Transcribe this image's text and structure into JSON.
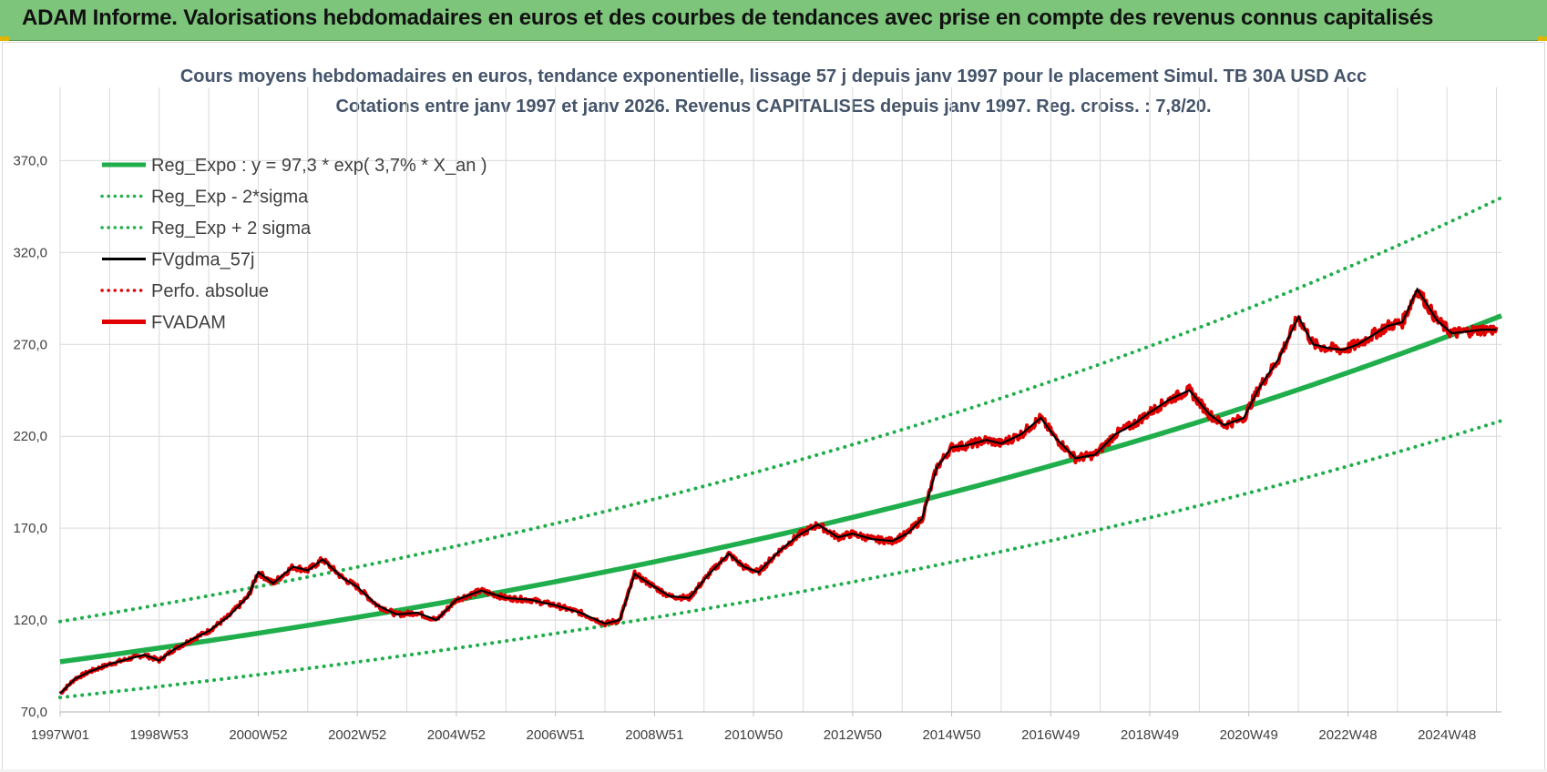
{
  "header": {
    "title": "ADAM Informe. Valorisations hebdomadaires en euros et des courbes de tendances avec prise en compte des revenus connus capitalisés"
  },
  "colors": {
    "header_bg": "#7dc57a",
    "reg_expo": "#1fae4b",
    "sigma": "#1fae4b",
    "gdma": "#000000",
    "perfo": "#e00000",
    "fvadam": "#e00000",
    "grid": "#d9d9d9"
  },
  "chart_data": {
    "type": "line",
    "title_line1": "Cours moyens hebdomadaires en euros, tendance exponentielle, lissage 57 j depuis janv 1997 pour le placement Simul. TB 30A USD Acc",
    "title_line2": "Cotations entre janv 1997 et janv 2026. Revenus CAPITALISES depuis janv 1997. Reg. croiss. : 7,8/20.",
    "ylim": [
      70,
      390
    ],
    "yticks": [
      "70,0",
      "120,0",
      "170,0",
      "220,0",
      "270,0",
      "320,0",
      "370,0"
    ],
    "ytick_values": [
      70,
      120,
      170,
      220,
      270,
      320,
      370
    ],
    "xticks": [
      "1997W01",
      "1998W53",
      "2000W52",
      "2002W52",
      "2004W52",
      "2006W51",
      "2008W51",
      "2010W50",
      "2012W50",
      "2014W50",
      "2016W49",
      "2018W49",
      "2020W49",
      "2022W48",
      "2024W48"
    ],
    "xtick_years": [
      1997.0,
      1999.0,
      2001.0,
      2003.0,
      2005.0,
      2007.0,
      2009.0,
      2011.0,
      2013.0,
      2015.0,
      2017.0,
      2019.0,
      2021.0,
      2023.0,
      2025.0
    ],
    "xlim": [
      1997.0,
      2026.1
    ],
    "legend": [
      {
        "key": "reg_expo",
        "label": "Reg_Expo : y = 97,3 * exp( 3,7% *  X_an )",
        "style": "solid-thick",
        "color": "#1fae4b"
      },
      {
        "key": "reg_minus",
        "label": "Reg_Exp - 2*sigma",
        "style": "dotted",
        "color": "#1fae4b"
      },
      {
        "key": "reg_plus",
        "label": "Reg_Exp + 2 sigma",
        "style": "dotted",
        "color": "#1fae4b"
      },
      {
        "key": "gdma",
        "label": "FVgdma_57j",
        "style": "solid",
        "color": "#000000"
      },
      {
        "key": "perfo",
        "label": "Perfo. absolue",
        "style": "dotted",
        "color": "#e00000"
      },
      {
        "key": "fvadam",
        "label": "FVADAM",
        "style": "solid-thick",
        "color": "#e00000"
      }
    ],
    "legend_position": "top-left",
    "regression": {
      "a": 97.3,
      "rate": 0.037,
      "sigma_factor_minus": 0.8,
      "sigma_factor_plus": 1.225
    },
    "series": [
      {
        "name": "FVADAM",
        "x": [
          1997.0,
          1997.3,
          1997.6,
          1998.0,
          1998.4,
          1998.7,
          1999.0,
          1999.3,
          1999.7,
          2000.0,
          2000.4,
          2000.8,
          2001.0,
          2001.3,
          2001.7,
          2002.0,
          2002.3,
          2002.7,
          2003.0,
          2003.4,
          2003.8,
          2004.2,
          2004.6,
          2005.0,
          2005.5,
          2006.0,
          2006.5,
          2007.0,
          2007.5,
          2008.0,
          2008.3,
          2008.6,
          2009.0,
          2009.3,
          2009.7,
          2010.1,
          2010.5,
          2010.8,
          2011.1,
          2011.5,
          2011.9,
          2012.3,
          2012.7,
          2013.0,
          2013.4,
          2013.8,
          2014.1,
          2014.4,
          2014.7,
          2015.0,
          2015.3,
          2015.7,
          2016.0,
          2016.4,
          2016.8,
          2017.1,
          2017.5,
          2017.9,
          2018.3,
          2018.7,
          2019.0,
          2019.4,
          2019.8,
          2020.2,
          2020.5,
          2020.9,
          2021.2,
          2021.6,
          2022.0,
          2022.3,
          2022.6,
          2022.9,
          2023.2,
          2023.5,
          2023.8,
          2024.1,
          2024.4,
          2024.8,
          2025.1,
          2025.4,
          2025.7,
          2026.0
        ],
        "values": [
          80,
          88,
          92,
          96,
          99,
          101,
          98,
          104,
          110,
          114,
          122,
          133,
          146,
          140,
          149,
          147,
          153,
          143,
          138,
          128,
          123,
          124,
          120,
          131,
          136,
          132,
          131,
          128,
          124,
          118,
          120,
          145,
          138,
          133,
          132,
          145,
          156,
          149,
          146,
          157,
          166,
          172,
          165,
          167,
          164,
          163,
          167,
          175,
          203,
          214,
          215,
          218,
          216,
          221,
          230,
          219,
          208,
          210,
          221,
          227,
          233,
          240,
          245,
          232,
          226,
          230,
          246,
          262,
          285,
          270,
          268,
          267,
          270,
          275,
          280,
          282,
          300,
          283,
          276,
          277,
          278,
          278
        ]
      }
    ]
  }
}
